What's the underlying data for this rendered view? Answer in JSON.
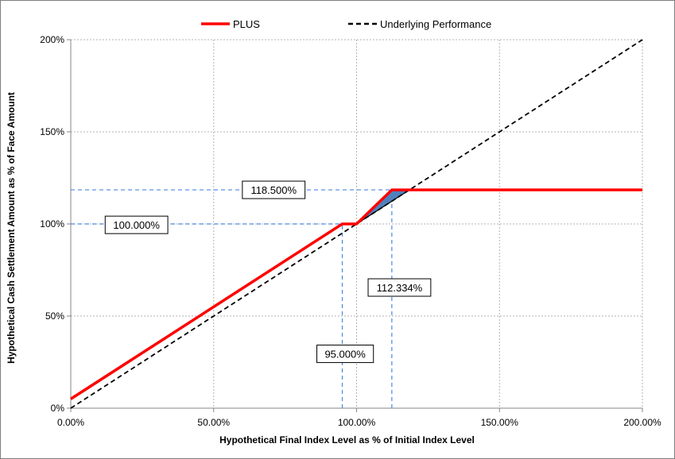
{
  "chart_data": {
    "type": "line",
    "xlabel": "Hypothetical Final Index Level as % of Initial Index Level",
    "ylabel": "Hypothetical Cash Settlement Amount as % of Face Amount",
    "xlim": [
      0,
      200
    ],
    "ylim": [
      0,
      200
    ],
    "x_ticks": [
      0,
      50,
      100,
      150,
      200
    ],
    "x_tick_labels": [
      "0.00%",
      "50.00%",
      "100.00%",
      "150.00%",
      "200.00%"
    ],
    "y_ticks": [
      0,
      50,
      100,
      150,
      200
    ],
    "y_tick_labels": [
      "0%",
      "50%",
      "100%",
      "150%",
      "200%"
    ],
    "grid": true,
    "legend_position": "top-center",
    "series": [
      {
        "name": "PLUS",
        "color": "#ff0000",
        "style": "solid",
        "points": [
          [
            0,
            5
          ],
          [
            95,
            100
          ],
          [
            100,
            100
          ],
          [
            112.334,
            118.5
          ],
          [
            200,
            118.5
          ]
        ]
      },
      {
        "name": "Underlying Performance",
        "color": "#000000",
        "style": "dashed",
        "points": [
          [
            0,
            0
          ],
          [
            200,
            200
          ]
        ]
      }
    ],
    "shaded_region": {
      "color": "#4f81bd",
      "points": [
        [
          100,
          100
        ],
        [
          112.334,
          118.5
        ],
        [
          118.5,
          118.5
        ]
      ]
    },
    "reference_lines": [
      {
        "orientation": "horizontal",
        "value": 118.5,
        "from": 0,
        "to": 112.334
      },
      {
        "orientation": "horizontal",
        "value": 100,
        "from": 0,
        "to": 95
      },
      {
        "orientation": "vertical",
        "value": 95,
        "from": 0,
        "to": 100
      },
      {
        "orientation": "vertical",
        "value": 112.334,
        "from": 0,
        "to": 118.5
      }
    ],
    "annotations": [
      {
        "text": "118.500%",
        "x": 71,
        "y": 118.5
      },
      {
        "text": "100.000%",
        "x": 23,
        "y": 99.5
      },
      {
        "text": "112.334%",
        "x": 115,
        "y": 65.5
      },
      {
        "text": "95.000%",
        "x": 96,
        "y": 29.5
      }
    ]
  }
}
